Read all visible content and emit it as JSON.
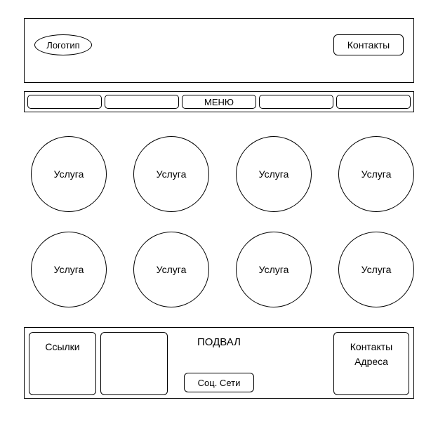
{
  "wireframe": {
    "type": "website-wireframe",
    "background_color": "#ffffff",
    "border_color": "#000000",
    "text_color": "#000000",
    "font_family": "Arial",
    "base_fontsize": 14
  },
  "header": {
    "logo_label": "Логотип",
    "contacts_label": "Контакты"
  },
  "menu": {
    "items": [
      "",
      "",
      "МЕНЮ",
      "",
      ""
    ]
  },
  "services": {
    "items": [
      {
        "label": "Услуга"
      },
      {
        "label": "Услуга"
      },
      {
        "label": "Услуга"
      },
      {
        "label": "Услуга"
      },
      {
        "label": "Услуга"
      },
      {
        "label": "Услуга"
      },
      {
        "label": "Услуга"
      },
      {
        "label": "Услуга"
      }
    ]
  },
  "footer": {
    "title": "ПОДВАЛ",
    "links_label": "Ссылки",
    "social_label": "Соц. Сети",
    "contacts_line1": "Контакты",
    "contacts_line2": "Адреса"
  }
}
